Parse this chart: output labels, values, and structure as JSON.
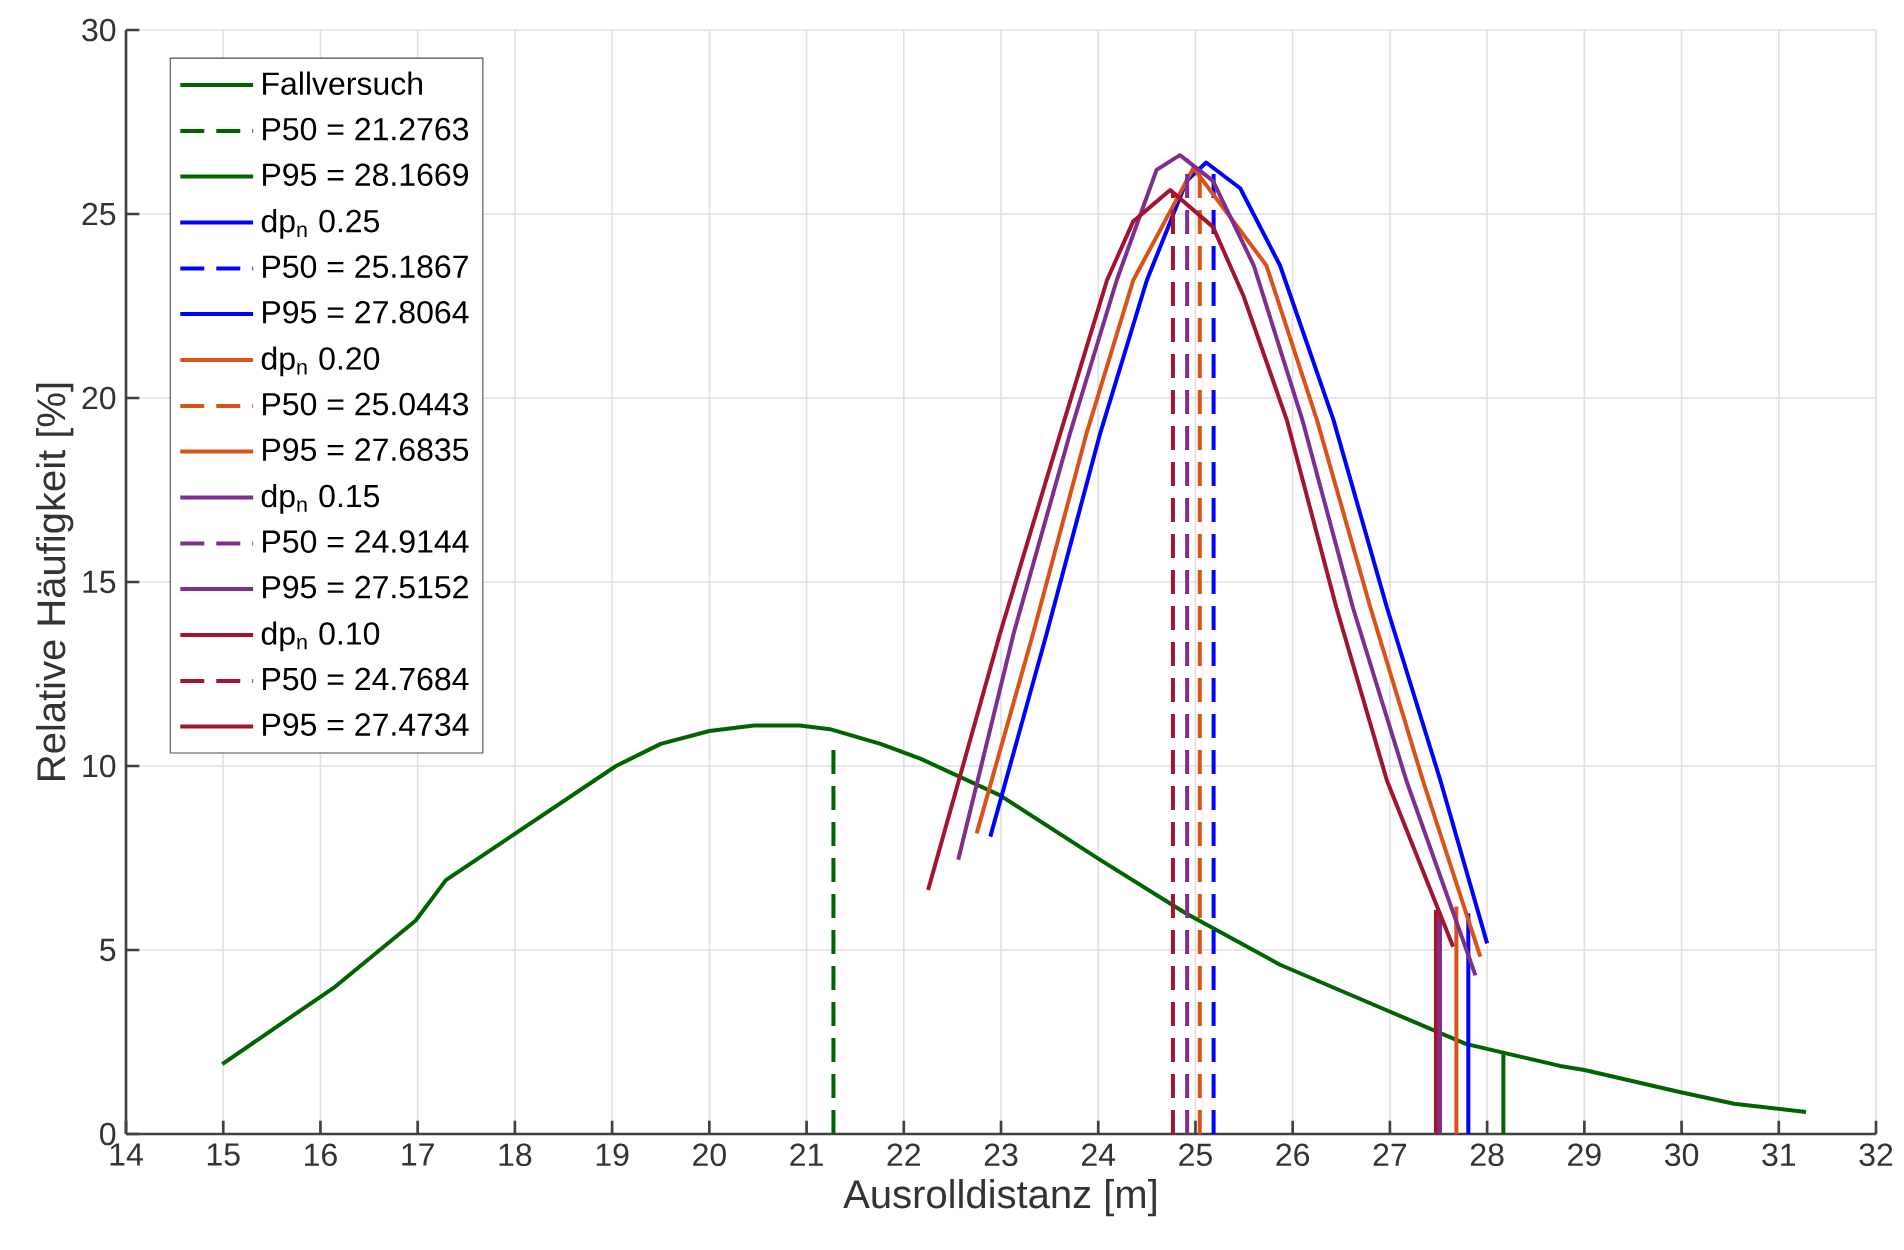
{
  "chart_data": {
    "type": "line",
    "xlabel": "Ausrolldistanz [m]",
    "ylabel": "Relative Häufigkeit [%]",
    "xlim": [
      14,
      32
    ],
    "ylim": [
      0,
      30
    ],
    "xticks": [
      14,
      15,
      16,
      17,
      18,
      19,
      20,
      21,
      22,
      23,
      24,
      25,
      26,
      27,
      28,
      29,
      30,
      31,
      32
    ],
    "yticks": [
      0,
      5,
      10,
      15,
      20,
      25,
      30
    ],
    "grid": true,
    "legend": "top left",
    "marker": "none",
    "series": [
      {
        "name": "Fallversuch",
        "color": "#006400",
        "line_style": "solid",
        "x": [
          14.99,
          16.15,
          16.98,
          17.29,
          19.04,
          19.5,
          20.0,
          20.46,
          20.93,
          21.24,
          21.76,
          22.17,
          22.99,
          24.02,
          24.9,
          25.87,
          26.96,
          27.78,
          28.75,
          29.0,
          29.98,
          30.54,
          31.28
        ],
        "values": [
          1.9,
          4.0,
          5.8,
          6.9,
          10.0,
          10.6,
          10.95,
          11.1,
          11.1,
          11.0,
          10.6,
          10.2,
          9.2,
          7.45,
          6.0,
          4.6,
          3.37,
          2.45,
          1.85,
          1.74,
          1.14,
          0.82,
          0.6
        ]
      },
      {
        "name": "P50 = 21.2763",
        "color": "#006400",
        "line_style": "dashed",
        "x": [
          21.2763,
          21.2763
        ],
        "values": [
          0,
          10.6
        ]
      },
      {
        "name": "P95 = 28.1669",
        "color": "#006400",
        "line_style": "solid",
        "x": [
          28.1669,
          28.1669
        ],
        "values": [
          0,
          2.17
        ]
      },
      {
        "name": "dp$_{n}$ 0.25",
        "color": "#0000ff",
        "line_style": "solid",
        "x": [
          22.89,
          23.47,
          24.02,
          24.5,
          24.91,
          25.11,
          25.46,
          25.87,
          26.42,
          26.97,
          27.52,
          28.0
        ],
        "values": [
          8.08,
          13.6,
          19.04,
          23.2,
          25.9,
          26.4,
          25.7,
          23.6,
          19.4,
          14.3,
          9.6,
          5.18
        ]
      },
      {
        "name": "P50 = 25.1867",
        "color": "#0000ff",
        "line_style": "dashed",
        "x": [
          25.1867,
          25.1867
        ],
        "values": [
          0,
          26.3
        ]
      },
      {
        "name": "P95 = 27.8064",
        "color": "#0000ff",
        "line_style": "solid",
        "x": [
          27.8064,
          27.8064
        ],
        "values": [
          0,
          6.0
        ]
      },
      {
        "name": "dp$_{n}$ 0.20",
        "color": "#d95319",
        "line_style": "solid",
        "x": [
          22.75,
          23.33,
          23.88,
          24.36,
          24.98,
          25.73,
          26.25,
          26.8,
          27.34,
          27.93
        ],
        "values": [
          8.17,
          13.6,
          19.04,
          23.2,
          26.25,
          23.6,
          19.4,
          14.3,
          9.6,
          4.82
        ]
      },
      {
        "name": "P50 = 25.0443",
        "color": "#d95319",
        "line_style": "dashed",
        "x": [
          25.0443,
          25.0443
        ],
        "values": [
          0,
          26.2
        ]
      },
      {
        "name": "P95 = 27.6835",
        "color": "#d95319",
        "line_style": "solid",
        "x": [
          27.6835,
          27.6835
        ],
        "values": [
          0,
          6.18
        ]
      },
      {
        "name": "dp$_{n}$ 0.15",
        "color": "#7e2f8e",
        "line_style": "solid",
        "x": [
          22.56,
          23.13,
          23.71,
          24.19,
          24.6,
          24.84,
          25.18,
          25.6,
          26.1,
          26.62,
          27.17,
          27.88
        ],
        "values": [
          7.45,
          13.6,
          19.04,
          23.2,
          26.2,
          26.6,
          25.9,
          23.6,
          19.4,
          14.3,
          9.6,
          4.31
        ]
      },
      {
        "name": "P50 = 24.9144",
        "color": "#7e2f8e",
        "line_style": "dashed",
        "x": [
          24.9144,
          24.9144
        ],
        "values": [
          0,
          26.5
        ]
      },
      {
        "name": "P95 = 27.5152",
        "color": "#7e2f8e",
        "line_style": "solid",
        "x": [
          27.5152,
          27.5152
        ],
        "values": [
          0,
          5.96
        ]
      },
      {
        "name": "dp$_{n}$ 0.10",
        "color": "#a2142f",
        "line_style": "solid",
        "x": [
          22.25,
          22.99,
          23.61,
          24.09,
          24.36,
          24.74,
          25.18,
          25.49,
          25.94,
          26.45,
          26.97,
          27.65
        ],
        "values": [
          6.63,
          13.6,
          19.04,
          23.2,
          24.8,
          25.65,
          24.65,
          22.8,
          19.4,
          14.3,
          9.6,
          5.09
        ]
      },
      {
        "name": "P50 = 24.7684",
        "color": "#a2142f",
        "line_style": "dashed",
        "x": [
          24.7684,
          24.7684
        ],
        "values": [
          0,
          25.6
        ]
      },
      {
        "name": "P95 = 27.4734",
        "color": "#a2142f",
        "line_style": "solid",
        "x": [
          27.4734,
          27.4734
        ],
        "values": [
          0,
          6.09
        ]
      }
    ]
  }
}
